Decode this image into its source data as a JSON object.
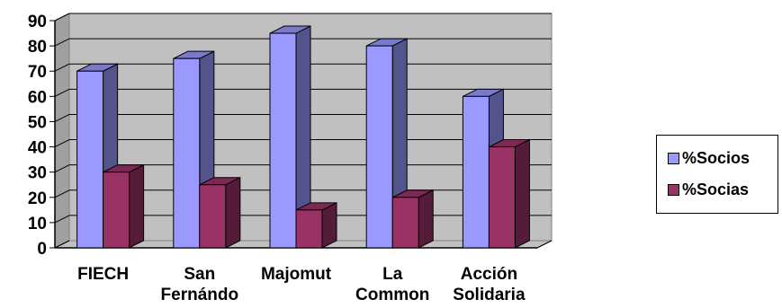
{
  "chart_data": {
    "type": "bar",
    "categories": [
      [
        "FIECH"
      ],
      [
        "San",
        "Fernándo"
      ],
      [
        "Majomut"
      ],
      [
        "La",
        "Common"
      ],
      [
        "Acción",
        "Solidaria"
      ]
    ],
    "series": [
      {
        "name": "%Socios",
        "values": [
          70,
          75,
          85,
          80,
          60
        ],
        "color": "#9999ff"
      },
      {
        "name": "%Socias",
        "values": [
          30,
          25,
          15,
          20,
          40
        ],
        "color": "#993366"
      }
    ],
    "ylim": [
      0,
      90
    ],
    "yticks": [
      0,
      10,
      20,
      30,
      40,
      50,
      60,
      70,
      80,
      90
    ],
    "grid": true,
    "legend_position": "right",
    "title": "",
    "xlabel": "",
    "ylabel": ""
  }
}
